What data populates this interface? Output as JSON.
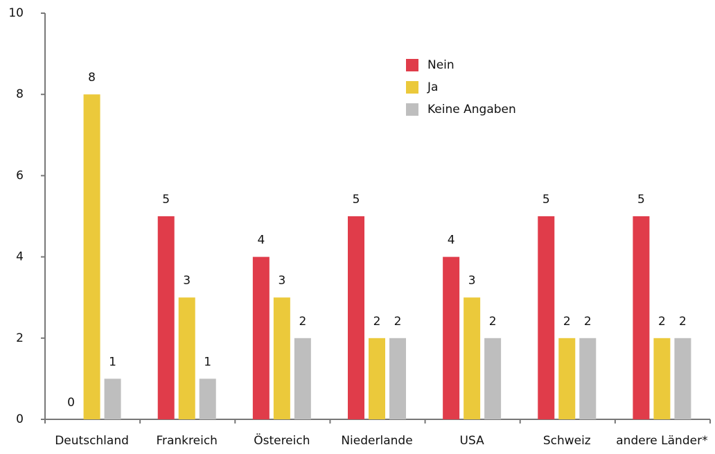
{
  "chart_data": {
    "type": "bar",
    "categories": [
      "Deutschland",
      "Frankreich",
      "Östereich",
      "Niederlande",
      "USA",
      "Schweiz",
      "andere Länder*"
    ],
    "series": [
      {
        "name": "Nein",
        "color": "#e03c4a",
        "values": [
          0,
          5,
          4,
          5,
          4,
          5,
          5
        ]
      },
      {
        "name": "Ja",
        "color": "#ebc93b",
        "values": [
          8,
          3,
          3,
          2,
          3,
          2,
          2
        ]
      },
      {
        "name": "Keine Angaben",
        "color": "#bebebe",
        "values": [
          1,
          1,
          2,
          2,
          2,
          2,
          2
        ]
      }
    ],
    "ylim": [
      0,
      10
    ],
    "yticks": [
      0,
      2,
      4,
      6,
      8,
      10
    ],
    "legend": "top-center"
  }
}
